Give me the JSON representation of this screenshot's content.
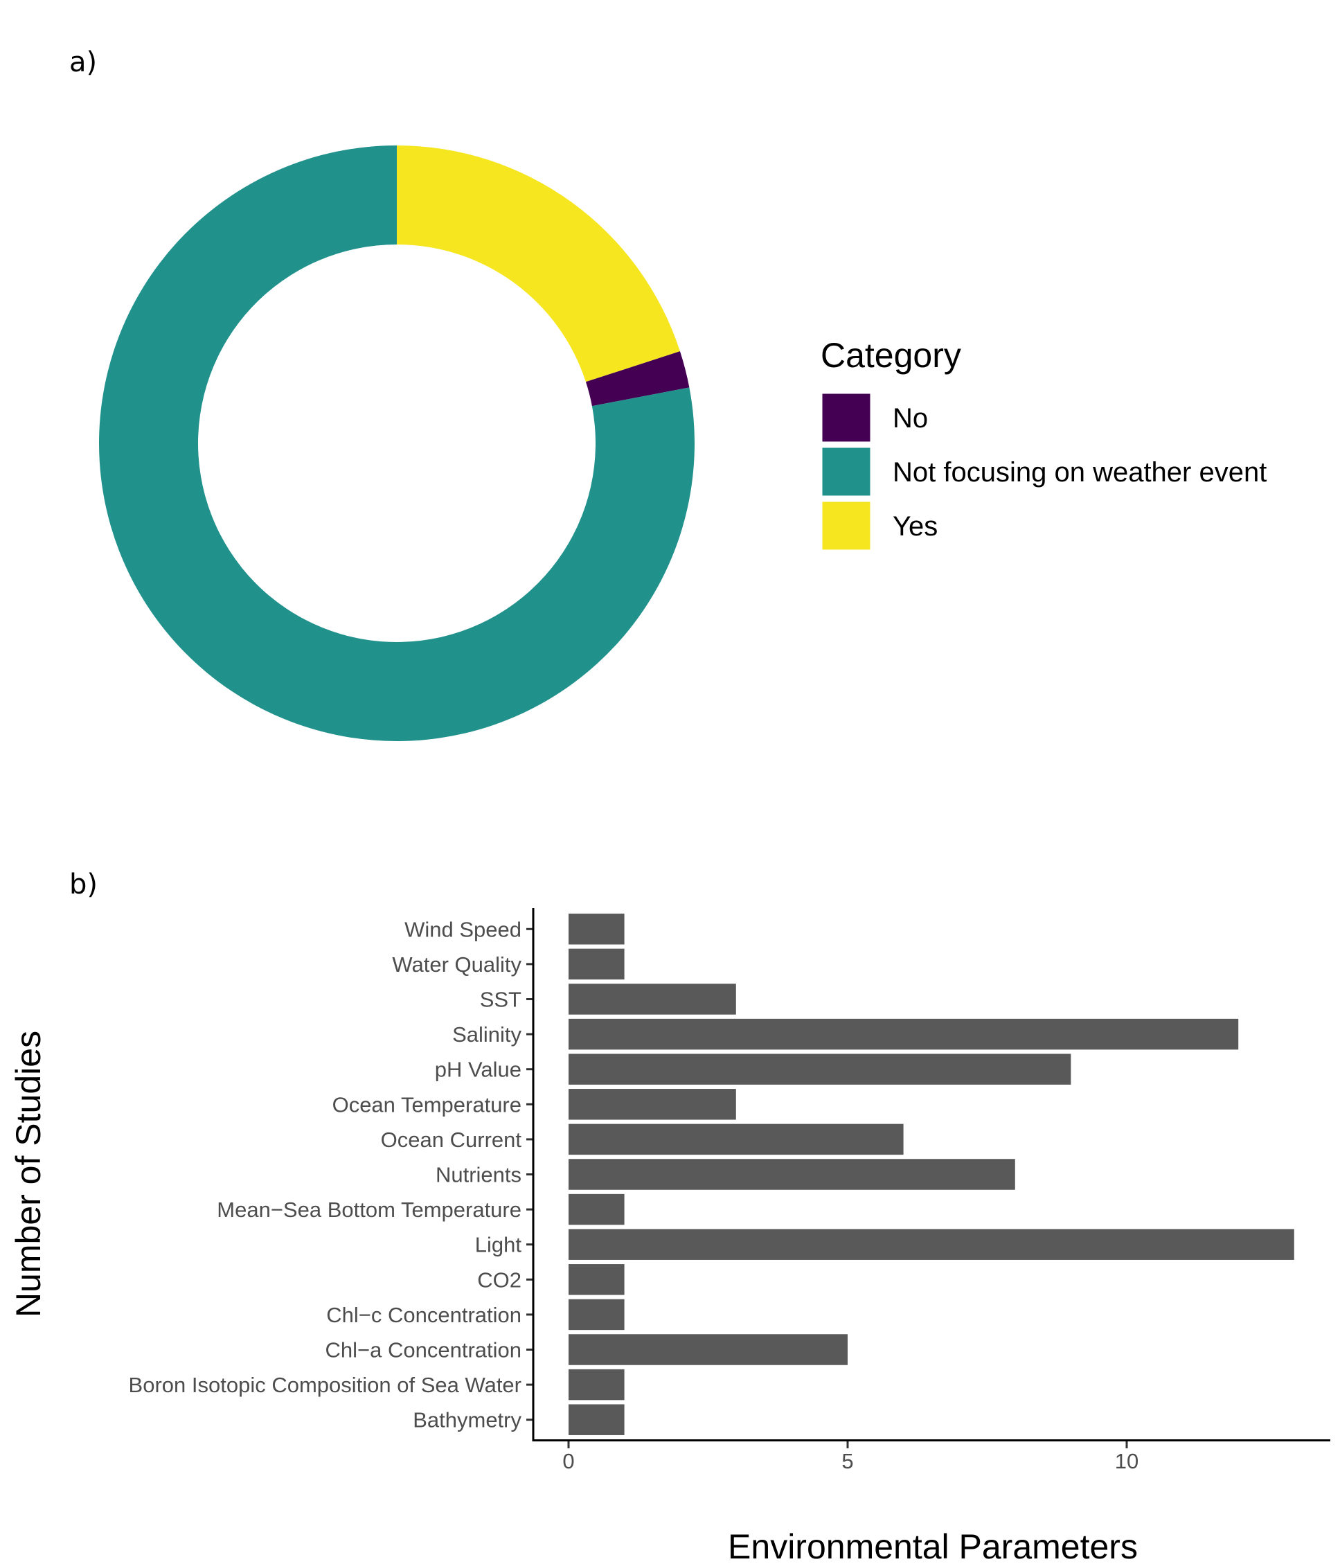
{
  "panels": {
    "a": "a)",
    "b": "b)"
  },
  "chart_data": [
    {
      "type": "pie",
      "variant": "donut",
      "legend_title": "Category",
      "legend_position": "right",
      "slices": [
        {
          "label": "No",
          "value": 2,
          "color": "#440154"
        },
        {
          "label": "Not focusing on weather event",
          "value": 78,
          "color": "#21918c"
        },
        {
          "label": "Yes",
          "value": 20,
          "color": "#f6e620"
        }
      ]
    },
    {
      "type": "bar",
      "orientation": "horizontal",
      "bar_color": "#595959",
      "categories": [
        "Wind Speed",
        "Water Quality",
        "SST",
        "Salinity",
        "pH Value",
        "Ocean Temperature",
        "Ocean Current",
        "Nutrients",
        "Mean−Sea Bottom Temperature",
        "Light",
        "CO2",
        "Chl−c Concentration",
        "Chl−a Concentration",
        "Boron Isotopic Composition of Sea Water",
        "Bathymetry"
      ],
      "values": [
        1,
        1,
        3,
        12,
        9,
        3,
        6,
        8,
        1,
        13,
        1,
        1,
        5,
        1,
        1
      ],
      "xlabel": "Environmental Parameters",
      "ylabel": "Number of Studies",
      "xlim": [
        -0.65,
        13.65
      ],
      "xticks": [
        0,
        5,
        10
      ],
      "grid": false
    }
  ]
}
